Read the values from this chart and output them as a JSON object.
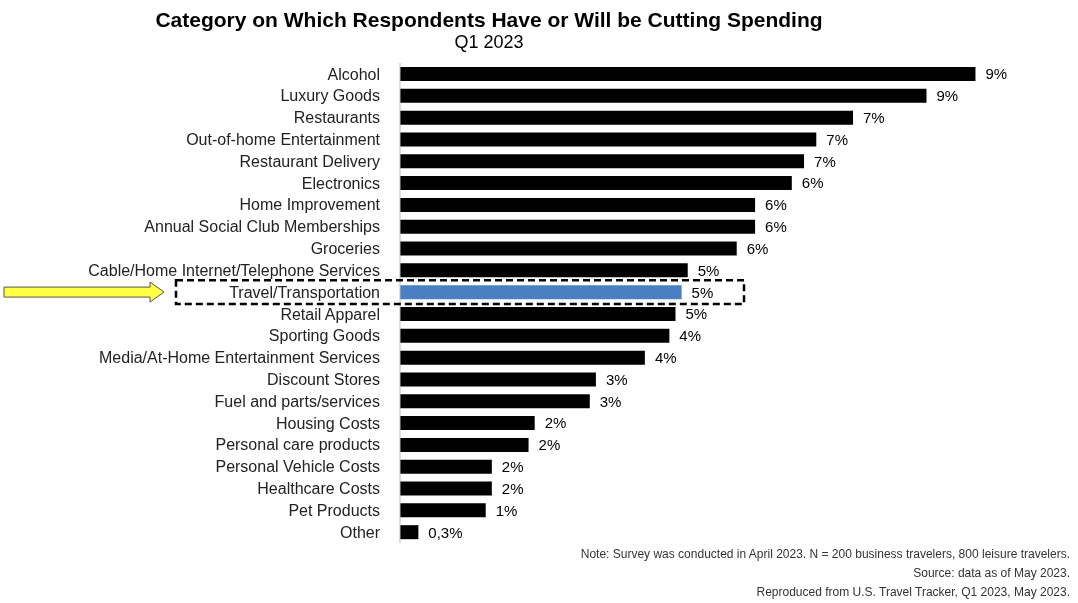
{
  "chart_data": {
    "type": "bar",
    "orientation": "horizontal",
    "title": "Category on Which Respondents Have or Will be Cutting Spending",
    "subtitle": "Q1 2023",
    "categories": [
      "Alcohol",
      "Luxury Goods",
      "Restaurants",
      "Out-of-home Entertainment ",
      "Restaurant Delivery",
      "Electronics",
      "Home Improvement ",
      "Annual Social Club Memberships",
      "Groceries",
      "Cable/Home Internet/Telephone Services",
      "Travel/Transportation",
      "Retail Apparel",
      "Sporting Goods",
      "Media/At-Home Entertainment Services",
      "Discount Stores",
      "Fuel and parts/services",
      "Housing Costs",
      "Personal care products",
      "Personal Vehicle Costs",
      "Healthcare Costs",
      "Pet Products",
      "Other"
    ],
    "values": [
      9.4,
      8.6,
      7.4,
      6.8,
      6.6,
      6.4,
      5.8,
      5.8,
      5.5,
      4.7,
      4.6,
      4.5,
      4.4,
      4.0,
      3.2,
      3.1,
      2.2,
      2.1,
      1.5,
      1.5,
      1.4,
      0.3
    ],
    "value_labels": [
      "9%",
      "9%",
      "7%",
      "7%",
      "7%",
      "6%",
      "6%",
      "6%",
      "6%",
      "5%",
      "5%",
      "5%",
      "4%",
      "4%",
      "3%",
      "3%",
      "2%",
      "2%",
      "2%",
      "2%",
      "1%",
      "0,3%"
    ],
    "colors": [
      "#000000",
      "#000000",
      "#000000",
      "#000000",
      "#000000",
      "#000000",
      "#000000",
      "#000000",
      "#000000",
      "#000000",
      "#4a7fc1",
      "#000000",
      "#000000",
      "#000000",
      "#000000",
      "#000000",
      "#000000",
      "#000000",
      "#000000",
      "#000000",
      "#000000",
      "#000000"
    ],
    "annotations": [
      "Note: Survey was conducted in April 2023. N = 200 business travelers, 800 leisure travelers.",
      "Source: data as of  May 2023.",
      "Reproduced from U.S. Travel Tracker, Q1 2023, May 2023."
    ],
    "grid": false,
    "legend": false
  }
}
